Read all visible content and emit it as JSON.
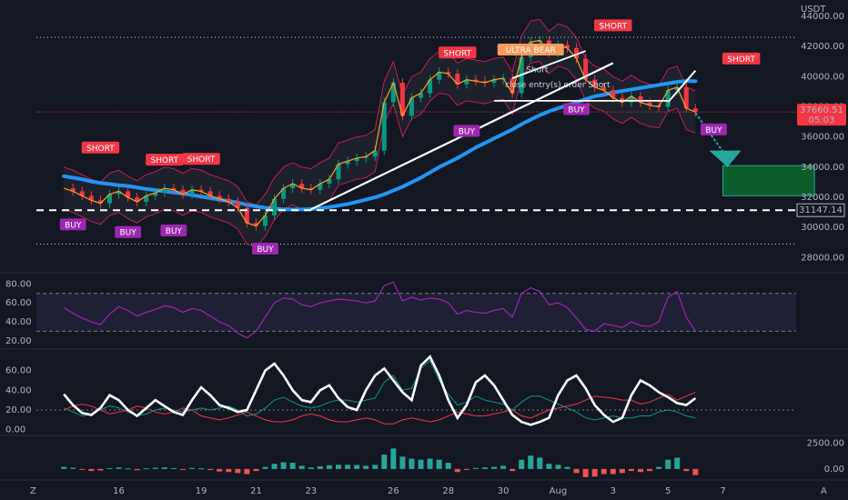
{
  "chart_data": {
    "type": "line",
    "currency": "USDT",
    "price_axis": {
      "ticks": [
        44000,
        42000,
        40000,
        38000,
        36000,
        34000,
        32000,
        30000,
        28000
      ],
      "tick_labels": [
        "44000.00",
        "42000.00",
        "40000.00",
        "38000.00",
        "36000.00",
        "34000.00",
        "32000.00",
        "30000.00",
        "28000.00"
      ],
      "ylim": [
        27000,
        44600
      ]
    },
    "current_price": {
      "value": 37660.51,
      "label": "37660.51",
      "countdown": "05:03",
      "color": "#f23645"
    },
    "horizontal_level": {
      "value": 31147.14,
      "label": "31147.14",
      "style": "dashed",
      "color": "#ffffff"
    },
    "upper_dotted_level": 42600,
    "lower_dotted_level": 28900,
    "x_axis": {
      "labels": [
        "16",
        "19",
        "21",
        "23",
        "26",
        "28",
        "30",
        "Aug",
        "3",
        "5",
        "7"
      ],
      "index_positions": [
        6,
        15,
        21,
        27,
        36,
        42,
        48,
        54,
        60,
        66,
        72
      ],
      "x_range": [
        -3,
        80
      ]
    },
    "price_series": {
      "name": "",
      "color": "#f5a623",
      "values": [
        32600,
        32400,
        32100,
        31800,
        31600,
        32200,
        32400,
        32000,
        31700,
        32100,
        32300,
        32600,
        32500,
        32200,
        32500,
        32400,
        32100,
        31900,
        31700,
        31300,
        30300,
        30100,
        30800,
        31900,
        32600,
        32900,
        32600,
        32500,
        32900,
        33200,
        34200,
        34400,
        34600,
        34700,
        35100,
        38300,
        39600,
        37400,
        38600,
        38900,
        39800,
        40300,
        40200,
        39500,
        39800,
        39700,
        39600,
        39800,
        39900,
        38900,
        41300,
        42300,
        42400,
        41600,
        42100,
        41900,
        41200,
        39800,
        39300,
        39100,
        38600,
        38300,
        38700,
        38300,
        38100,
        38000,
        39100,
        39300,
        37900,
        37660
      ]
    },
    "ma_series": {
      "name": "",
      "color": "#2196f3",
      "values": [
        33400,
        33300,
        33200,
        33050,
        32950,
        32880,
        32800,
        32750,
        32650,
        32550,
        32480,
        32400,
        32320,
        32250,
        32150,
        32050,
        31950,
        31850,
        31750,
        31650,
        31500,
        31400,
        31300,
        31250,
        31200,
        31200,
        31200,
        31220,
        31280,
        31350,
        31450,
        31550,
        31700,
        31850,
        32000,
        32200,
        32450,
        32700,
        33000,
        33300,
        33650,
        34000,
        34300,
        34600,
        34950,
        35300,
        35600,
        35900,
        36200,
        36500,
        36850,
        37150,
        37450,
        37700,
        37900,
        38100,
        38300,
        38500,
        38700,
        38800,
        38950,
        39050,
        39150,
        39250,
        39350,
        39450,
        39550,
        39650,
        39700,
        39700
      ]
    },
    "signals": [
      {
        "type": "SHORT",
        "text": "SHORT",
        "x": 4,
        "y": 35300
      },
      {
        "type": "SHORT",
        "text": "SHORT",
        "x": 11,
        "y": 34500
      },
      {
        "type": "SHORT",
        "text": "SHORT",
        "x": 15,
        "y": 34550
      },
      {
        "type": "SHORT",
        "text": "SHORT",
        "x": 43,
        "y": 41600
      },
      {
        "type": "SHORT",
        "text": "SHORT",
        "x": 60,
        "y": 43400
      },
      {
        "type": "SHORT",
        "text": "SHORT",
        "x": 74,
        "y": 41200
      },
      {
        "type": "ULTRA",
        "text": "ULTRA BEAR",
        "x": 51,
        "y": 41800
      },
      {
        "type": "BUY",
        "text": "BUY",
        "x": 1,
        "y": 30200
      },
      {
        "type": "BUY",
        "text": "BUY",
        "x": 7,
        "y": 29700
      },
      {
        "type": "BUY",
        "text": "BUY",
        "x": 12,
        "y": 29800
      },
      {
        "type": "BUY",
        "text": "BUY",
        "x": 22,
        "y": 28600
      },
      {
        "type": "BUY",
        "text": "BUY",
        "x": 44,
        "y": 36400
      },
      {
        "type": "BUY",
        "text": "BUY",
        "x": 56,
        "y": 37850
      },
      {
        "type": "BUY",
        "text": "BUY",
        "x": 71,
        "y": 36500
      }
    ],
    "annotations": [
      "Short",
      "close entry(s) order Short"
    ],
    "target_box": {
      "x": [
        72,
        82
      ],
      "y": [
        32100,
        34100
      ],
      "color": "#0b5e2a"
    },
    "rsi": {
      "ticks": [
        80,
        60,
        40,
        20
      ],
      "tick_labels": [
        "80.00",
        "60.00",
        "40.00",
        "20.00"
      ],
      "ylim": [
        15,
        88
      ],
      "band": [
        30,
        70
      ],
      "color": "#9c27b0",
      "values": [
        55,
        49,
        44,
        40,
        37,
        48,
        56,
        52,
        46,
        50,
        53,
        57,
        55,
        50,
        54,
        52,
        46,
        40,
        36,
        28,
        23,
        30,
        45,
        60,
        65,
        64,
        58,
        56,
        60,
        62,
        64,
        63,
        62,
        60,
        62,
        78,
        82,
        62,
        66,
        63,
        65,
        64,
        60,
        48,
        52,
        50,
        49,
        52,
        54,
        45,
        70,
        76,
        72,
        58,
        60,
        55,
        44,
        32,
        30,
        38,
        36,
        34,
        40,
        36,
        35,
        40,
        66,
        72,
        45,
        30
      ]
    },
    "adx": {
      "ticks": [
        60,
        40,
        20,
        0
      ],
      "tick_labels": [
        "60.00",
        "40.00",
        "20.00",
        "0.00"
      ],
      "ylim": [
        -3,
        78
      ],
      "series": [
        {
          "name": "",
          "color": "#ffffff",
          "values": [
            36,
            25,
            17,
            15,
            22,
            35,
            30,
            20,
            14,
            22,
            30,
            24,
            18,
            15,
            30,
            43,
            35,
            25,
            22,
            18,
            20,
            40,
            60,
            67,
            55,
            40,
            30,
            28,
            40,
            45,
            32,
            23,
            20,
            40,
            55,
            62,
            50,
            38,
            30,
            65,
            74,
            55,
            30,
            12,
            25,
            48,
            55,
            45,
            30,
            15,
            8,
            5,
            8,
            12,
            35,
            50,
            55,
            42,
            25,
            15,
            8,
            12,
            35,
            50,
            45,
            38,
            33,
            27,
            25,
            32
          ]
        },
        {
          "name": "",
          "color": "#f23645",
          "values": [
            20,
            24,
            26,
            24,
            20,
            16,
            18,
            20,
            24,
            22,
            18,
            16,
            18,
            22,
            20,
            14,
            12,
            10,
            12,
            15,
            18,
            14,
            10,
            8,
            8,
            10,
            14,
            16,
            14,
            10,
            8,
            8,
            10,
            12,
            10,
            6,
            6,
            10,
            12,
            10,
            8,
            10,
            14,
            18,
            16,
            14,
            14,
            16,
            18,
            20,
            14,
            12,
            16,
            20,
            22,
            24,
            26,
            30,
            34,
            33,
            32,
            30,
            30,
            26,
            28,
            32,
            36,
            30,
            34,
            38
          ]
        },
        {
          "name": "",
          "color": "#089981",
          "values": [
            22,
            18,
            14,
            16,
            20,
            24,
            22,
            18,
            14,
            16,
            20,
            22,
            20,
            18,
            20,
            22,
            20,
            22,
            24,
            20,
            14,
            16,
            22,
            30,
            33,
            28,
            24,
            22,
            24,
            28,
            30,
            30,
            28,
            30,
            32,
            48,
            55,
            40,
            42,
            62,
            70,
            50,
            36,
            25,
            28,
            34,
            30,
            28,
            26,
            20,
            28,
            34,
            34,
            30,
            26,
            22,
            18,
            12,
            10,
            12,
            14,
            12,
            12,
            14,
            14,
            18,
            20,
            18,
            14,
            12
          ]
        }
      ]
    },
    "macd": {
      "ticks": [
        2500,
        0
      ],
      "tick_labels": [
        "2500.00",
        "0.00"
      ],
      "ylim": [
        -900,
        3000
      ],
      "values": [
        200,
        120,
        -80,
        -200,
        -150,
        80,
        150,
        50,
        -120,
        60,
        120,
        150,
        80,
        -50,
        100,
        60,
        -100,
        -250,
        -300,
        -400,
        -500,
        -200,
        200,
        500,
        650,
        600,
        300,
        150,
        250,
        350,
        400,
        400,
        380,
        300,
        400,
        1400,
        2000,
        1200,
        1000,
        900,
        1000,
        900,
        600,
        -300,
        -100,
        100,
        150,
        200,
        300,
        -200,
        900,
        1300,
        1100,
        500,
        400,
        200,
        -400,
        -800,
        -750,
        -500,
        -500,
        -400,
        -200,
        -300,
        -200,
        200,
        900,
        1100,
        -200,
        -600
      ]
    }
  },
  "footer": {
    "left_icon": "Z",
    "right_icon": "A"
  }
}
